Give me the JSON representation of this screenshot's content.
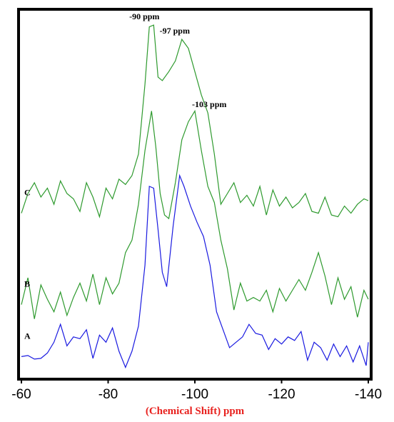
{
  "chart_data": {
    "type": "line",
    "xlabel_prefix": "(Chemical Shift)",
    "xlabel_unit": "ppm",
    "xlabel_color": "#e8211e",
    "xlim": [
      -60,
      -140
    ],
    "xticks": [
      -60,
      -80,
      -100,
      -120,
      -140
    ],
    "ylim": [
      0,
      100
    ],
    "grid": false,
    "series": [
      {
        "name": "A",
        "color": "#1a1ae0",
        "x": [
          -60,
          -61.5,
          -63,
          -64.5,
          -66,
          -67.5,
          -69,
          -70.5,
          -72,
          -73.5,
          -75,
          -76.5,
          -78,
          -79.5,
          -81,
          -82.5,
          -84,
          -85.5,
          -87,
          -88.5,
          -89.5,
          -90.5,
          -91.5,
          -92.5,
          -93.5,
          -95,
          -96.5,
          -97.5,
          -99,
          -100.5,
          -102,
          -103.5,
          -105,
          -106.5,
          -108,
          -109.5,
          -111,
          -112.5,
          -114,
          -115.5,
          -117,
          -118.5,
          -120,
          -121.5,
          -123,
          -124.5,
          -126,
          -127.5,
          -129,
          -130.5,
          -132,
          -133.5,
          -135,
          -136.5,
          -138,
          -139.5,
          -140
        ],
        "y": [
          4.5,
          4.8,
          3.8,
          4.0,
          5.5,
          8.5,
          13.5,
          7.5,
          10.0,
          9.5,
          12.0,
          4.0,
          10.5,
          8.5,
          12.5,
          6.0,
          1.5,
          6.0,
          13.0,
          30.0,
          52.0,
          51.5,
          40.0,
          28.0,
          24.0,
          41.0,
          55.0,
          52.0,
          46.5,
          42.0,
          38.0,
          30.0,
          17.0,
          12.0,
          7.0,
          8.5,
          10.0,
          13.5,
          11.0,
          10.5,
          6.5,
          9.5,
          8.0,
          10.0,
          9.0,
          11.5,
          3.5,
          8.5,
          7.0,
          3.5,
          8.0,
          4.5,
          7.5,
          3.0,
          7.5,
          2.0,
          8.5
        ]
      },
      {
        "name": "B",
        "color": "#2e9a2e",
        "x": [
          -60,
          -61.5,
          -63,
          -64.5,
          -66,
          -67.5,
          -69,
          -70.5,
          -72,
          -73.5,
          -75,
          -76.5,
          -78,
          -79.5,
          -81,
          -82.5,
          -84,
          -85.5,
          -87,
          -88.5,
          -90,
          -91,
          -92,
          -93,
          -94,
          -95.5,
          -97,
          -98.5,
          -100,
          -101.5,
          -103,
          -104.5,
          -106,
          -107.5,
          -109,
          -110.5,
          -112,
          -113.5,
          -115,
          -116.5,
          -118,
          -119.5,
          -121,
          -122.5,
          -124,
          -125.5,
          -127,
          -128.5,
          -130,
          -131.5,
          -133,
          -134.5,
          -136,
          -137.5,
          -139,
          -140
        ],
        "y": [
          19.0,
          26.5,
          15.0,
          24.5,
          20.5,
          17.0,
          22.5,
          16.0,
          21.0,
          25.0,
          20.0,
          27.5,
          19.0,
          26.5,
          22.0,
          25.0,
          33.5,
          37.0,
          47.0,
          62.0,
          73.0,
          63.0,
          50.0,
          44.0,
          43.0,
          53.0,
          65.0,
          70.0,
          73.0,
          62.0,
          52.0,
          47.5,
          37.0,
          29.0,
          17.5,
          25.0,
          20.0,
          21.0,
          20.0,
          23.0,
          17.0,
          23.5,
          20.0,
          23.0,
          26.0,
          23.0,
          28.0,
          33.5,
          27.0,
          19.0,
          26.5,
          20.5,
          24.0,
          15.5,
          23.0,
          20.5
        ]
      },
      {
        "name": "C",
        "color": "#2e9a2e",
        "x": [
          -60,
          -61.5,
          -63,
          -64.5,
          -66,
          -67.5,
          -69,
          -70.5,
          -72,
          -73.5,
          -75,
          -76.5,
          -78,
          -79.5,
          -81,
          -82.5,
          -84,
          -85.5,
          -87,
          -88.5,
          -89.5,
          -90.5,
          -91.5,
          -92.5,
          -94,
          -95.5,
          -97,
          -98.5,
          -100,
          -101.5,
          -103,
          -104.5,
          -106,
          -107.5,
          -109,
          -110.5,
          -112,
          -113.5,
          -115,
          -116.5,
          -118,
          -119.5,
          -121,
          -122.5,
          -124,
          -125.5,
          -127,
          -128.5,
          -130,
          -131.5,
          -133,
          -134.5,
          -136,
          -137.5,
          -139,
          -140
        ],
        "y": [
          44.5,
          50.0,
          53.0,
          49.0,
          51.5,
          47.0,
          53.5,
          50.0,
          48.5,
          45.0,
          53.0,
          49.0,
          43.5,
          51.5,
          48.5,
          54.0,
          52.5,
          55.0,
          61.0,
          80.5,
          96.5,
          97.0,
          82.5,
          81.5,
          84.0,
          87.0,
          93.0,
          90.5,
          84.0,
          77.5,
          72.5,
          61.0,
          47.0,
          50.0,
          53.0,
          47.5,
          49.5,
          46.5,
          52.0,
          44.0,
          51.0,
          46.5,
          49.0,
          46.0,
          47.5,
          50.0,
          45.0,
          44.5,
          49.0,
          44.0,
          43.5,
          46.5,
          44.5,
          47.0,
          48.5,
          48.0
        ]
      }
    ],
    "annotations": [
      {
        "text": "-90 ppm",
        "x": -90.0,
        "y": 97.0
      },
      {
        "text": "-97 ppm",
        "x": -97.0,
        "y": 93.0
      },
      {
        "text": "-103 ppm",
        "x": -103.0,
        "y": 72.5
      }
    ]
  }
}
